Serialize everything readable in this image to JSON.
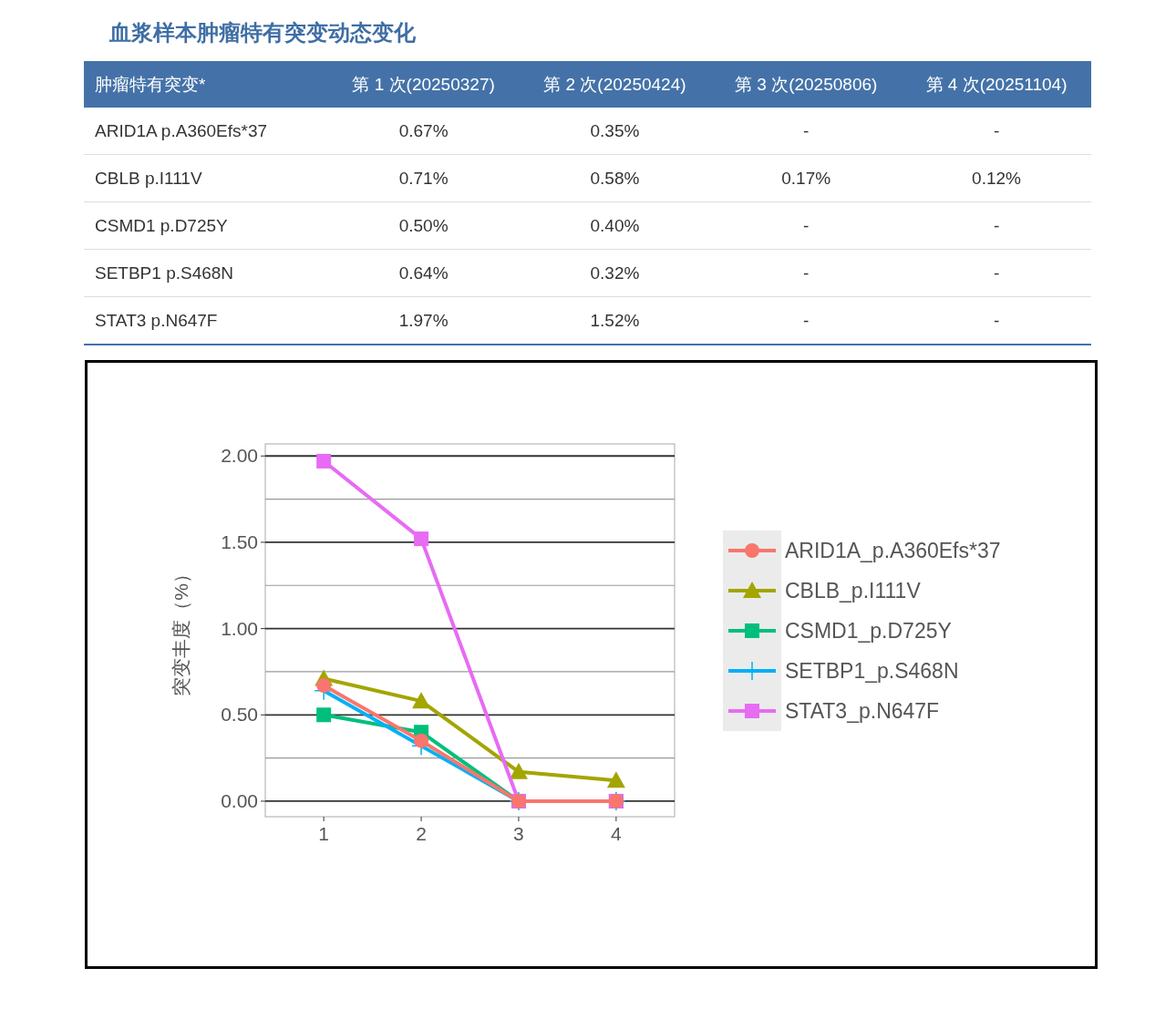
{
  "chart_data": [
    {
      "type": "other",
      "title": "血浆样本肿瘤特有突变动态变化",
      "annotations": [
        "肿瘤特有突变*",
        "第 1 次(20250327)",
        "第 2 次(20250424)",
        "第 3 次(20250806)",
        "第 4 次(20251104)",
        "ARID1A p.A360Efs*37",
        "0.67%",
        "0.35%",
        "-",
        "-",
        "CBLB p.I111V",
        "0.71%",
        "0.58%",
        "0.17%",
        "0.12%",
        "CSMD1 p.D725Y",
        "0.50%",
        "0.40%",
        "-",
        "-",
        "SETBP1 p.S468N",
        "0.64%",
        "0.32%",
        "-",
        "-",
        "STAT3 p.N647F",
        "1.97%",
        "1.52%",
        "-",
        "-"
      ]
    },
    {
      "type": "line",
      "ylabel": "突变丰度（%）",
      "x": [
        1,
        2,
        3,
        4
      ],
      "xlim": [
        0.4,
        4.6
      ],
      "xticks": [
        1,
        2,
        3,
        4
      ],
      "ylim": [
        -0.09,
        2.07
      ],
      "yticks": [
        {
          "value": 0,
          "label": "0.00"
        },
        {
          "value": 0.25,
          "label": null
        },
        {
          "value": 0.5,
          "label": "0.50"
        },
        {
          "value": 0.75,
          "label": null
        },
        {
          "value": 1,
          "label": "1.00"
        },
        {
          "value": 1.25,
          "label": null
        },
        {
          "value": 1.5,
          "label": "1.50"
        },
        {
          "value": 1.75,
          "label": null
        },
        {
          "value": 2,
          "label": "2.00"
        }
      ],
      "grid": true,
      "legend": "right",
      "line_style": "solid",
      "series": [
        {
          "name": "ARID1A_p.A360Efs*37",
          "color": "#f8766d",
          "marker": "circle",
          "values": [
            0.67,
            0.35,
            0,
            0
          ]
        },
        {
          "name": "CBLB_p.I111V",
          "color": "#a3a500",
          "marker": "triangle",
          "values": [
            0.71,
            0.58,
            0.17,
            0.12
          ]
        },
        {
          "name": "CSMD1_p.D725Y",
          "color": "#00bf7d",
          "marker": "square",
          "values": [
            0.5,
            0.4,
            0,
            0
          ]
        },
        {
          "name": "SETBP1_p.S468N",
          "color": "#00b0f6",
          "marker": "cross",
          "values": [
            0.64,
            0.32,
            0,
            0
          ]
        },
        {
          "name": "STAT3_p.N647F",
          "color": "#e76bf3",
          "marker": "square",
          "values": [
            1.97,
            1.52,
            0,
            0
          ]
        }
      ]
    }
  ]
}
